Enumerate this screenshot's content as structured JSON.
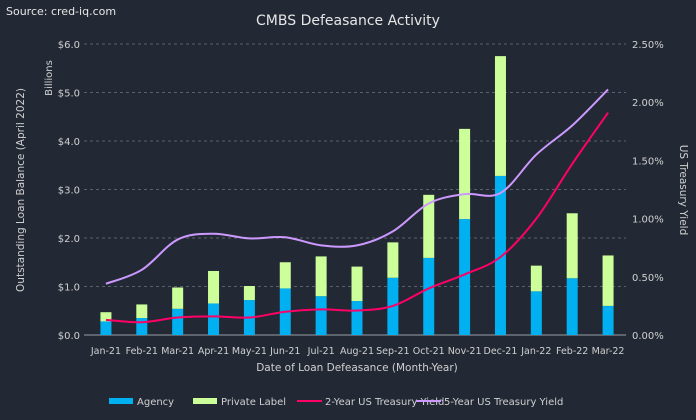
{
  "source": "Source: cred-iq.com",
  "chart_data": {
    "type": "bar",
    "stacked": true,
    "title": "CMBS Defeasance Activity",
    "xlabel": "Date of Loan Defeasance (Month-Year)",
    "ylabel": "Outstanding Loan Balance (April 2022)",
    "ylabel_units": "Billions",
    "y2label": "US Treasury Yield",
    "ylim": [
      0,
      6
    ],
    "y2lim": [
      0,
      2.5
    ],
    "yticks": [
      "$0.0",
      "$1.0",
      "$2.0",
      "$3.0",
      "$4.0",
      "$5.0",
      "$6.0"
    ],
    "y2ticks": [
      "0.00%",
      "0.50%",
      "1.00%",
      "1.50%",
      "2.00%",
      "2.50%"
    ],
    "grid": true,
    "legend_position": "bottom",
    "categories": [
      "Jan-21",
      "Feb-21",
      "Mar-21",
      "Apr-21",
      "May-21",
      "Jun-21",
      "Jul-21",
      "Aug-21",
      "Sep-21",
      "Oct-21",
      "Nov-21",
      "Dec-21",
      "Jan-22",
      "Feb-22",
      "Mar-22"
    ],
    "series": [
      {
        "name": "Agency",
        "kind": "bar",
        "axis": "left",
        "color": "#00b0f0",
        "values": [
          0.28,
          0.35,
          0.54,
          0.65,
          0.72,
          0.96,
          0.8,
          0.7,
          1.18,
          1.59,
          2.39,
          3.28,
          0.9,
          1.17,
          0.6
        ]
      },
      {
        "name": "Private Label",
        "kind": "bar",
        "axis": "left",
        "color": "#ccff99",
        "values": [
          0.19,
          0.28,
          0.44,
          0.67,
          0.29,
          0.54,
          0.82,
          0.71,
          0.73,
          1.3,
          1.86,
          2.47,
          0.53,
          1.34,
          1.04
        ]
      },
      {
        "name": "2-Year US Treasury Yield",
        "kind": "line",
        "axis": "right",
        "color": "#ff0066",
        "values": [
          0.13,
          0.11,
          0.15,
          0.16,
          0.15,
          0.2,
          0.22,
          0.21,
          0.25,
          0.4,
          0.52,
          0.67,
          1.0,
          1.47,
          1.91
        ]
      },
      {
        "name": "5-Year US Treasury Yield",
        "kind": "line",
        "axis": "right",
        "color": "#cc99ff",
        "values": [
          0.44,
          0.56,
          0.82,
          0.87,
          0.83,
          0.84,
          0.77,
          0.77,
          0.89,
          1.13,
          1.21,
          1.22,
          1.55,
          1.8,
          2.11
        ]
      }
    ]
  }
}
